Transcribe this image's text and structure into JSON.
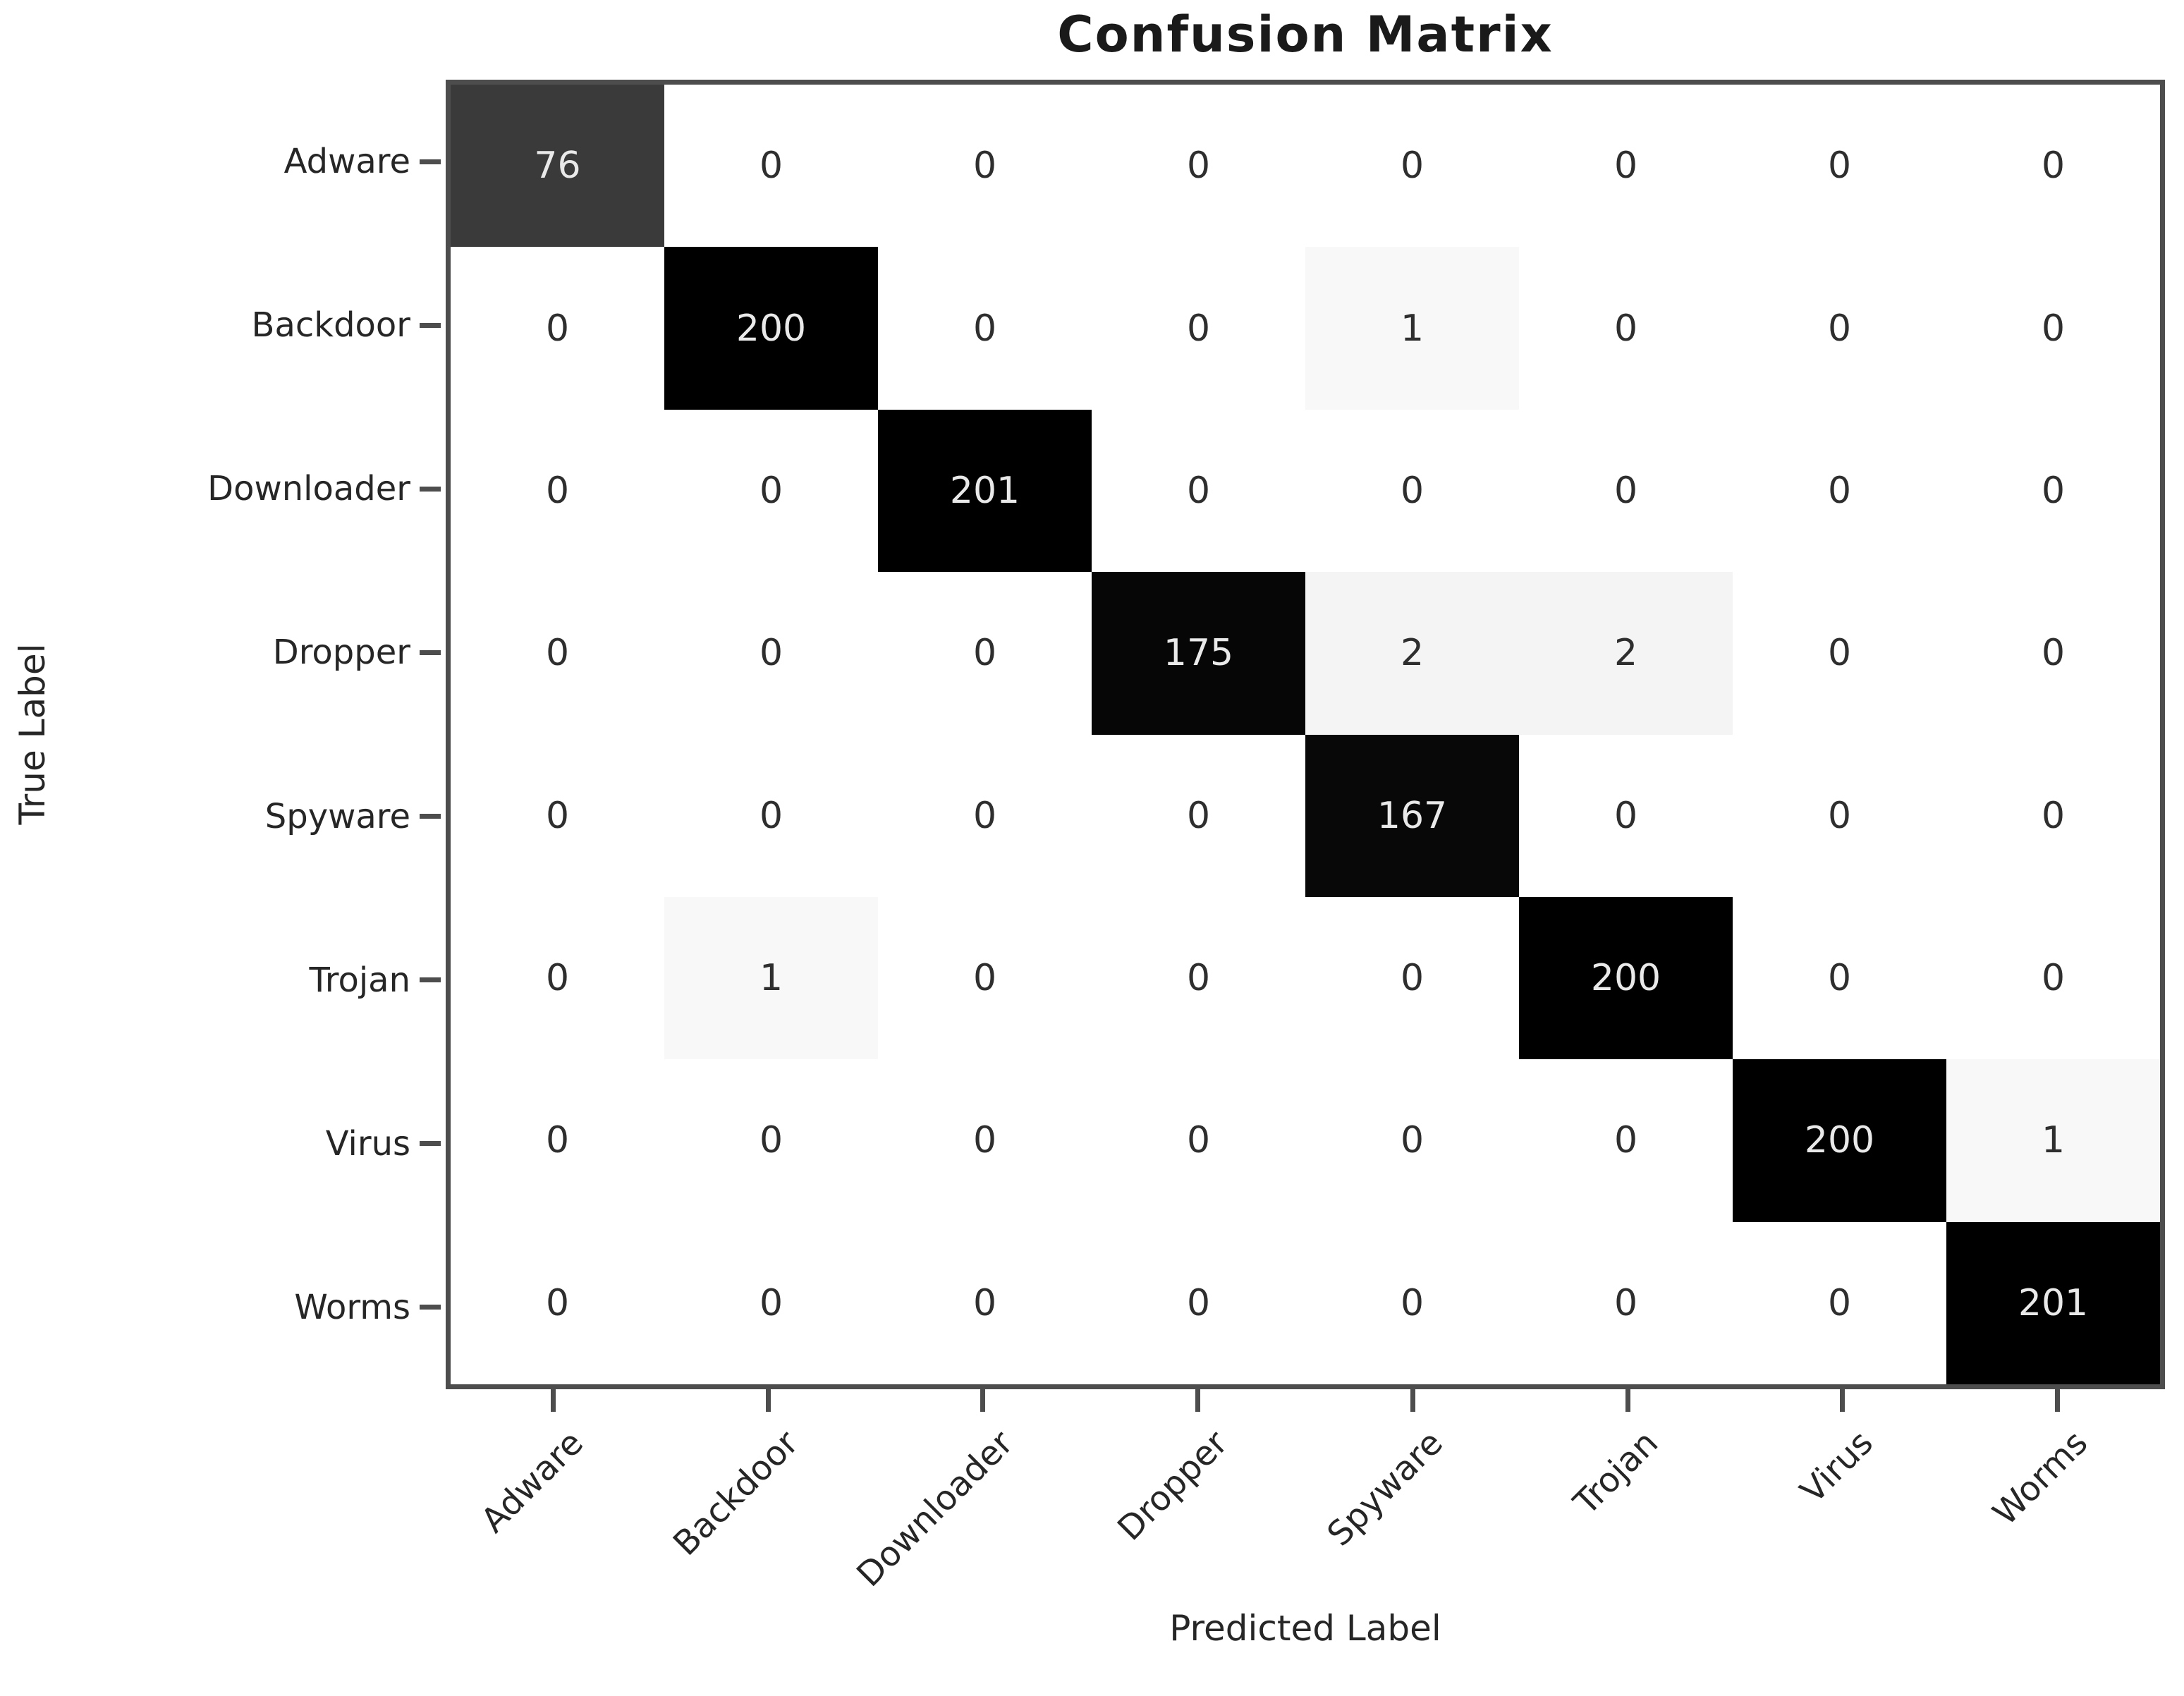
{
  "title": "Confusion Matrix",
  "chart_data": {
    "type": "heatmap",
    "title": "Confusion Matrix",
    "xlabel": "Predicted Label",
    "ylabel": "True Label",
    "x_categories": [
      "Adware",
      "Backdoor",
      "Downloader",
      "Dropper",
      "Spyware",
      "Trojan",
      "Virus",
      "Worms"
    ],
    "y_categories": [
      "Adware",
      "Backdoor",
      "Downloader",
      "Dropper",
      "Spyware",
      "Trojan",
      "Virus",
      "Worms"
    ],
    "matrix": [
      [
        76,
        0,
        0,
        0,
        0,
        0,
        0,
        0
      ],
      [
        0,
        200,
        0,
        0,
        1,
        0,
        0,
        0
      ],
      [
        0,
        0,
        201,
        0,
        0,
        0,
        0,
        0
      ],
      [
        0,
        0,
        0,
        175,
        2,
        2,
        0,
        0
      ],
      [
        0,
        0,
        0,
        0,
        167,
        0,
        0,
        0
      ],
      [
        0,
        1,
        0,
        0,
        0,
        200,
        0,
        0
      ],
      [
        0,
        0,
        0,
        0,
        0,
        0,
        200,
        1
      ],
      [
        0,
        0,
        0,
        0,
        0,
        0,
        0,
        201
      ]
    ],
    "value_range": [
      0,
      201
    ],
    "grid": false,
    "legend": "none",
    "colormap_anchors": [
      {
        "v": 0,
        "c": "#ffffff"
      },
      {
        "v": 1,
        "c": "#f8f8f8"
      },
      {
        "v": 2,
        "c": "#f4f4f4"
      },
      {
        "v": 76,
        "c": "#3a3a3a"
      },
      {
        "v": 167,
        "c": "#080808"
      },
      {
        "v": 201,
        "c": "#000000"
      }
    ],
    "colors": {
      "spine": "#4d4d4d",
      "tick": "#4d4d4d",
      "label_text": "#262626",
      "title_text": "#1a1a1a",
      "value_text_on_dark": "#e9e9e9",
      "value_text_on_light": "#2e2e2e"
    }
  }
}
